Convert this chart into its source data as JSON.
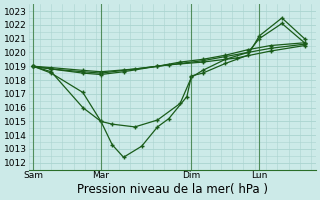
{
  "title": "Pression niveau de la mer( hPa )",
  "background_color": "#cceae8",
  "grid_color": "#aad4d0",
  "line_color": "#1a5c1a",
  "vline_color": "#2a6e2a",
  "ylim": [
    1011.5,
    1023.5
  ],
  "yticks": [
    1012,
    1013,
    1014,
    1015,
    1016,
    1017,
    1018,
    1019,
    1020,
    1021,
    1022,
    1023
  ],
  "xtick_labels": [
    "Sam",
    "Mar",
    "Dim",
    "Lun"
  ],
  "xtick_positions": [
    0.0,
    3.0,
    7.0,
    10.0
  ],
  "xlim": [
    -0.2,
    12.5
  ],
  "series": [
    {
      "x": [
        0.0,
        0.8,
        2.2,
        3.0,
        3.5,
        4.0,
        4.8,
        5.5,
        6.0,
        6.8,
        7.0,
        7.5,
        8.5,
        9.5,
        10.0,
        11.0,
        12.0
      ],
      "y": [
        1019.0,
        1018.5,
        1017.1,
        1015.0,
        1013.3,
        1012.4,
        1013.2,
        1014.6,
        1015.2,
        1016.8,
        1018.3,
        1018.5,
        1019.2,
        1019.8,
        1021.2,
        1022.5,
        1021.0
      ]
    },
    {
      "x": [
        0.0,
        0.8,
        2.2,
        3.0,
        3.5,
        4.5,
        5.5,
        6.5,
        7.0,
        7.5,
        8.5,
        9.5,
        10.0,
        11.0,
        12.0
      ],
      "y": [
        1019.0,
        1018.6,
        1016.0,
        1015.0,
        1014.8,
        1014.6,
        1015.1,
        1016.3,
        1018.2,
        1018.7,
        1019.5,
        1020.0,
        1021.0,
        1022.1,
        1020.7
      ]
    },
    {
      "x": [
        0.0,
        0.8,
        2.2,
        3.0,
        4.0,
        5.5,
        6.5,
        7.5,
        8.5,
        9.5,
        10.5,
        12.0
      ],
      "y": [
        1019.0,
        1018.8,
        1018.5,
        1018.4,
        1018.6,
        1019.0,
        1019.3,
        1019.5,
        1019.8,
        1020.2,
        1020.5,
        1020.7
      ]
    },
    {
      "x": [
        0.0,
        0.8,
        2.2,
        3.0,
        4.0,
        5.5,
        6.5,
        7.5,
        8.5,
        9.5,
        10.5,
        12.0
      ],
      "y": [
        1019.0,
        1018.8,
        1018.6,
        1018.5,
        1018.7,
        1019.0,
        1019.2,
        1019.4,
        1019.7,
        1020.0,
        1020.3,
        1020.6
      ]
    },
    {
      "x": [
        0.0,
        0.8,
        2.2,
        3.0,
        4.5,
        6.0,
        7.5,
        9.0,
        10.5,
        12.0
      ],
      "y": [
        1019.0,
        1018.9,
        1018.7,
        1018.6,
        1018.8,
        1019.1,
        1019.3,
        1019.6,
        1020.1,
        1020.5
      ]
    }
  ],
  "vlines": [
    0.0,
    3.0,
    7.0,
    10.0
  ],
  "tick_fontsize": 6.5,
  "xlabel_fontsize": 8.5,
  "marker": "+",
  "markersize": 3.5,
  "linewidth": 0.9
}
